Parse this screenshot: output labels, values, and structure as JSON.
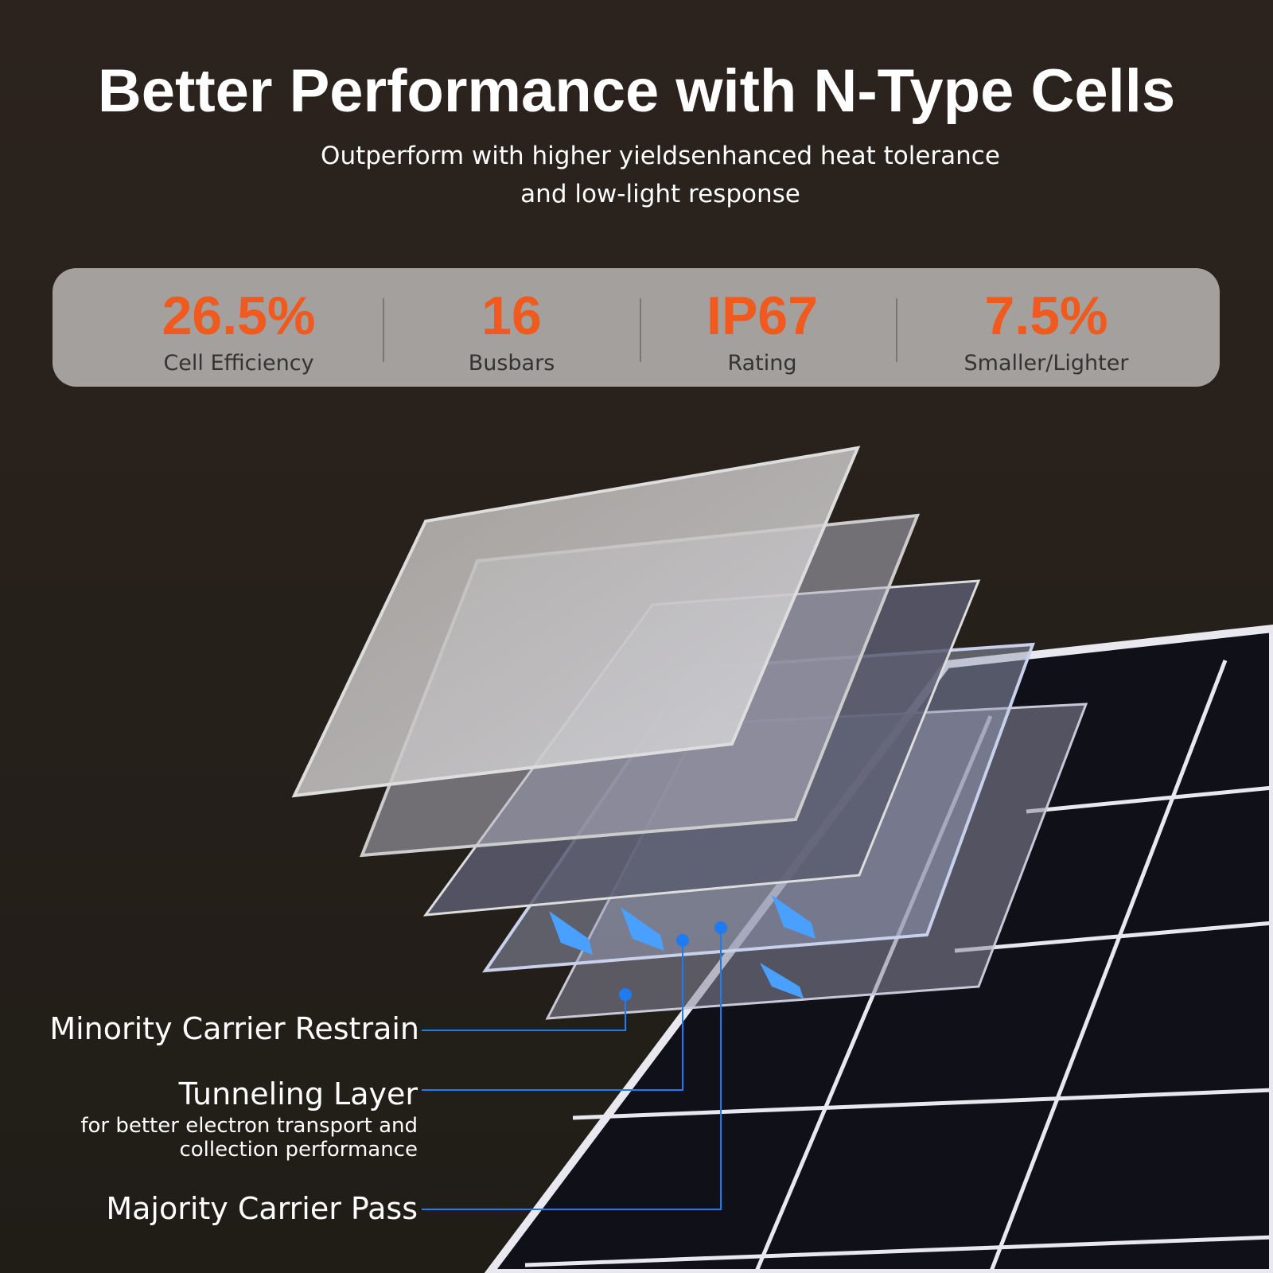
{
  "header": {
    "title": "Better Performance with N-Type Cells",
    "subtitle": [
      "Outperform with higher yieldsenhanced heat tolerance",
      "and low-light response"
    ]
  },
  "stats": [
    {
      "value": "26.5%",
      "label": "Cell Efficiency"
    },
    {
      "value": "16",
      "label": "Busbars"
    },
    {
      "value": "IP67",
      "label": "Rating"
    },
    {
      "value": "7.5%",
      "label": "Smaller/Lighter"
    }
  ],
  "callouts": [
    {
      "title": "Minority Carrier Restrain"
    },
    {
      "title": "Tunneling Layer",
      "subtitle": [
        "for better electron transport and",
        "collection performance"
      ]
    },
    {
      "title": "Majority Carrier Pass"
    }
  ]
}
